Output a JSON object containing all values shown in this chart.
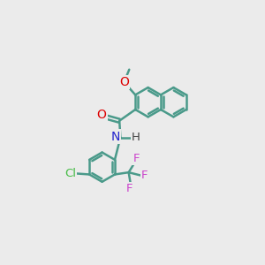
{
  "background_color": "#ebebeb",
  "bond_color": "#4a9a8a",
  "atom_colors": {
    "O_methoxy": "#dd0000",
    "O_carbonyl": "#dd0000",
    "N": "#2222cc",
    "H": "#444444",
    "F": "#cc44cc",
    "Cl": "#44bb44"
  },
  "bond_width": 1.8,
  "figsize": [
    3.0,
    3.0
  ],
  "dpi": 100
}
